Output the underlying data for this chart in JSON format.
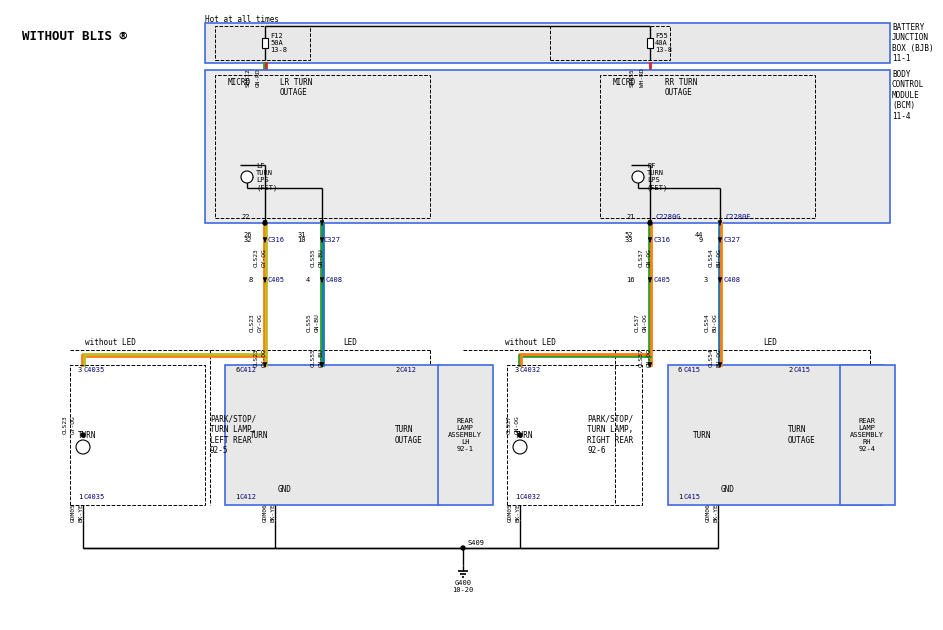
{
  "bg": "#ffffff",
  "title": "WITHOUT BLIS ®",
  "hot_label": "Hot at all times",
  "bjb_label": "BATTERY\nJUNCTION\nBOX (BJB)\n11-1",
  "bcm_label": "BODY\nCONTROL\nMODULE\n(BCM)\n11-4",
  "wire_gn_rd": "#2ca02c",
  "wire_rd": "#d62728",
  "wire_gy_og": "#ff7f0e",
  "wire_gn_bu": "#1f77b4",
  "wire_wh_rd": "#d62728",
  "wire_black": "#000000",
  "wire_ye": "#bcbd22",
  "wire_gn": "#2ca02c",
  "wire_bu": "#1f77b4",
  "box_blue": "#4169E1",
  "box_gray": "#e8e8e8",
  "box_gray2": "#ebebeb",
  "conn_blue": "#000080"
}
